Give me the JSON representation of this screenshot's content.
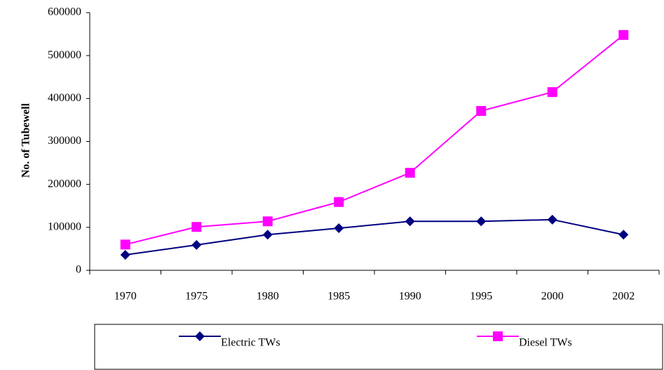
{
  "chart_data": {
    "type": "line",
    "y_label": "No. of Tubewell",
    "categories": [
      "1970",
      "1975",
      "1980",
      "1985",
      "1990",
      "1995",
      "2000",
      "2002"
    ],
    "series": [
      {
        "name": "Electric TWs",
        "color": "#000080",
        "marker": "diamond",
        "values": [
          36000,
          59000,
          83000,
          98000,
          114000,
          114000,
          118000,
          83000
        ]
      },
      {
        "name": "Diesel TWs",
        "color": "#ff00ff",
        "marker": "square",
        "values": [
          60000,
          101000,
          114000,
          159000,
          227000,
          371000,
          415000,
          548000
        ]
      }
    ],
    "ylim": [
      0,
      600000
    ],
    "yticks": [
      0,
      100000,
      200000,
      300000,
      400000,
      500000,
      600000
    ],
    "grid": false,
    "legend": "bottom"
  }
}
